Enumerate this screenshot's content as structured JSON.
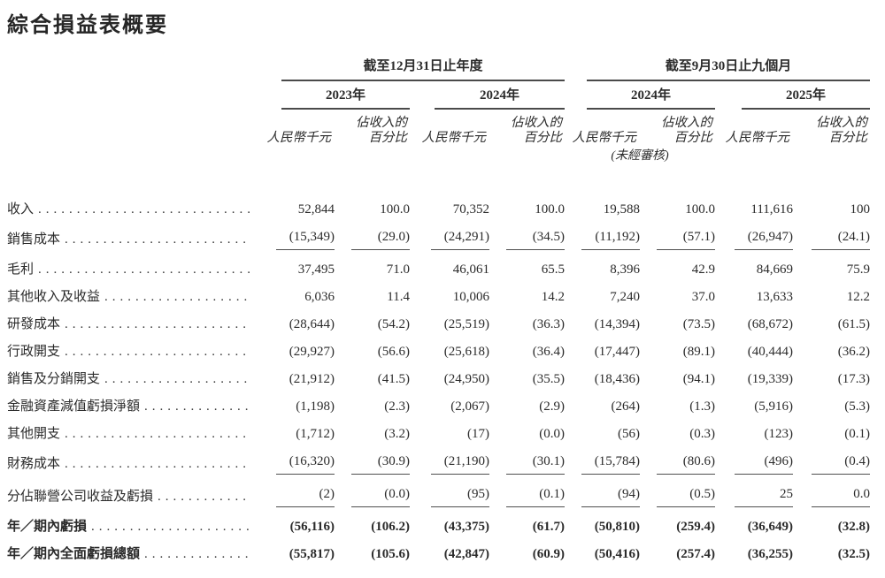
{
  "title": "綜合損益表概要",
  "table": {
    "period_groups": [
      {
        "label": "截至12月31日止年度",
        "years": [
          "2023年",
          "2024年"
        ]
      },
      {
        "label": "截至9月30日止九個月",
        "years": [
          "2024年",
          "2025年"
        ]
      }
    ],
    "subheaders": {
      "amount": "人民幣千元",
      "pct_line1": "佔收入的",
      "pct_line2": "百分比",
      "unaudited_note": "(未經審核)"
    },
    "rows": [
      {
        "label": "收入",
        "values": [
          "52,844",
          "100.0",
          "70,352",
          "100.0",
          "19,588",
          "100.0",
          "111,616",
          "100"
        ],
        "rule_below": false,
        "bold": false
      },
      {
        "label": "銷售成本",
        "values": [
          "(15,349)",
          "(29.0)",
          "(24,291)",
          "(34.5)",
          "(11,192)",
          "(57.1)",
          "(26,947)",
          "(24.1)"
        ],
        "rule_below": true,
        "bold": false
      },
      {
        "label": "毛利",
        "values": [
          "37,495",
          "71.0",
          "46,061",
          "65.5",
          "8,396",
          "42.9",
          "84,669",
          "75.9"
        ],
        "rule_below": false,
        "bold": false
      },
      {
        "label": "其他收入及收益",
        "values": [
          "6,036",
          "11.4",
          "10,006",
          "14.2",
          "7,240",
          "37.0",
          "13,633",
          "12.2"
        ],
        "rule_below": false,
        "bold": false
      },
      {
        "label": "研發成本",
        "values": [
          "(28,644)",
          "(54.2)",
          "(25,519)",
          "(36.3)",
          "(14,394)",
          "(73.5)",
          "(68,672)",
          "(61.5)"
        ],
        "rule_below": false,
        "bold": false
      },
      {
        "label": "行政開支",
        "values": [
          "(29,927)",
          "(56.6)",
          "(25,618)",
          "(36.4)",
          "(17,447)",
          "(89.1)",
          "(40,444)",
          "(36.2)"
        ],
        "rule_below": false,
        "bold": false
      },
      {
        "label": "銷售及分銷開支",
        "values": [
          "(21,912)",
          "(41.5)",
          "(24,950)",
          "(35.5)",
          "(18,436)",
          "(94.1)",
          "(19,339)",
          "(17.3)"
        ],
        "rule_below": false,
        "bold": false
      },
      {
        "label": "金融資產減值虧損淨額",
        "values": [
          "(1,198)",
          "(2.3)",
          "(2,067)",
          "(2.9)",
          "(264)",
          "(1.3)",
          "(5,916)",
          "(5.3)"
        ],
        "rule_below": false,
        "bold": false
      },
      {
        "label": "其他開支",
        "values": [
          "(1,712)",
          "(3.2)",
          "(17)",
          "(0.0)",
          "(56)",
          "(0.3)",
          "(123)",
          "(0.1)"
        ],
        "rule_below": false,
        "bold": false
      },
      {
        "label": "財務成本",
        "values": [
          "(16,320)",
          "(30.9)",
          "(21,190)",
          "(30.1)",
          "(15,784)",
          "(80.6)",
          "(496)",
          "(0.4)"
        ],
        "rule_below": true,
        "bold": false
      },
      {
        "label": "分佔聯營公司收益及虧損",
        "values": [
          "(2)",
          "(0.0)",
          "(95)",
          "(0.1)",
          "(94)",
          "(0.5)",
          "25",
          "0.0"
        ],
        "rule_below": true,
        "bold": false
      },
      {
        "label": "年／期內虧損",
        "values": [
          "(56,116)",
          "(106.2)",
          "(43,375)",
          "(61.7)",
          "(50,810)",
          "(259.4)",
          "(36,649)",
          "(32.8)"
        ],
        "rule_below": false,
        "bold": true
      },
      {
        "label": "年／期內全面虧損總額",
        "values": [
          "(55,817)",
          "(105.6)",
          "(42,847)",
          "(60.9)",
          "(50,416)",
          "(257.4)",
          "(36,255)",
          "(32.5)"
        ],
        "rule_below": false,
        "bold": true
      }
    ]
  }
}
